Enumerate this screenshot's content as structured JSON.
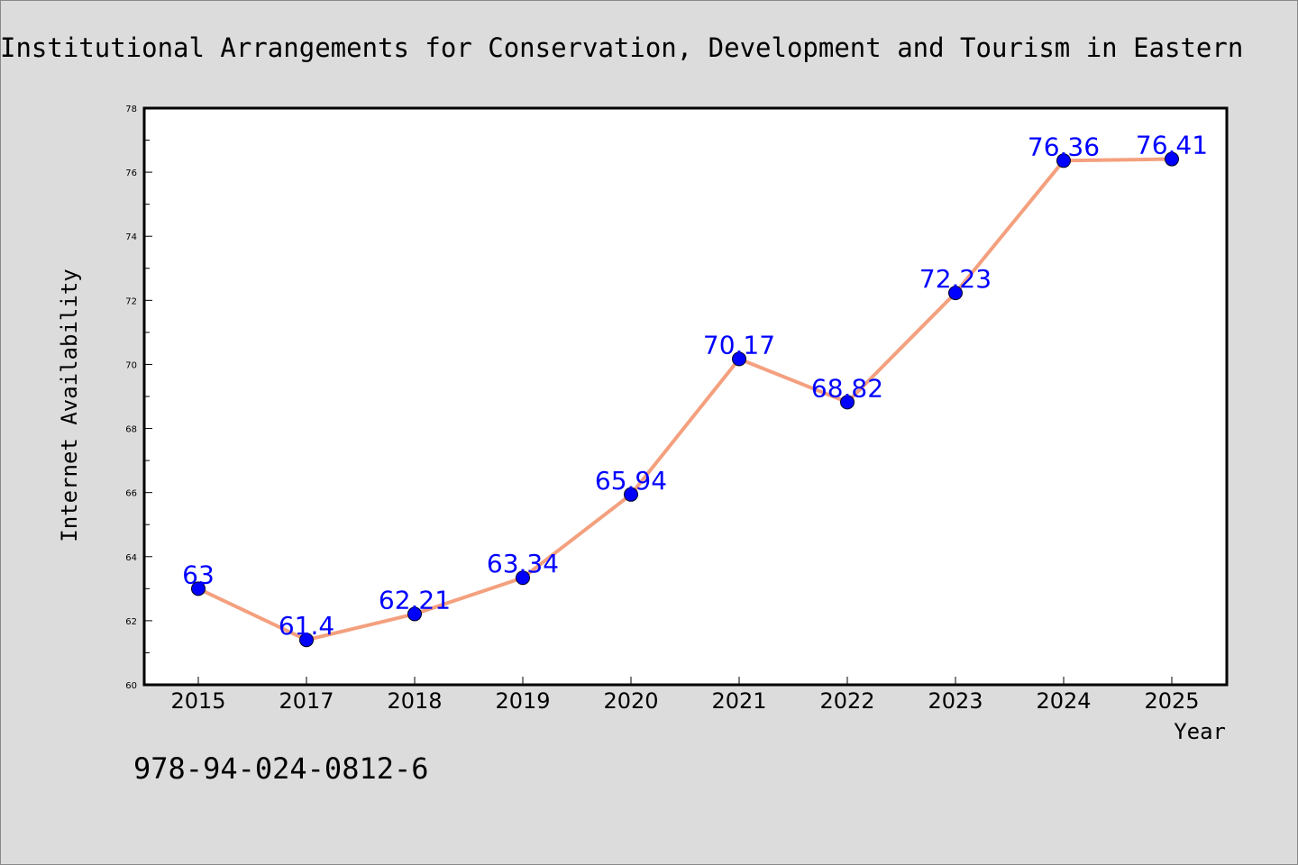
{
  "chart_data": {
    "type": "line",
    "title": "Institutional Arrangements for Conservation, Development and Tourism in Eastern",
    "xlabel": "Year",
    "ylabel": "Internet Availability",
    "categories": [
      "2015",
      "2017",
      "2018",
      "2019",
      "2020",
      "2021",
      "2022",
      "2023",
      "2024",
      "2025"
    ],
    "series": [
      {
        "values": [
          63,
          61.4,
          62.21,
          63.34,
          65.94,
          70.17,
          68.82,
          72.23,
          76.36,
          76.41
        ],
        "data_labels": [
          "63",
          "61.4",
          "62.21",
          "63.34",
          "65.94",
          "70.17",
          "68.82",
          "72.23",
          "76.36",
          "76.41"
        ]
      }
    ],
    "ylim": [
      60,
      78
    ],
    "yticks": [
      "60",
      "62",
      "64",
      "66",
      "68",
      "70",
      "72",
      "74",
      "76",
      "78"
    ],
    "grid": false,
    "legend": "none",
    "colors": {
      "line": "#f4a07e",
      "marker": "#0000ff",
      "data_label": "#0000ff",
      "background": "#dcdcdc",
      "plot_background": "#ffffff"
    }
  },
  "footer": {
    "isbn": "978-94-024-0812-6"
  }
}
